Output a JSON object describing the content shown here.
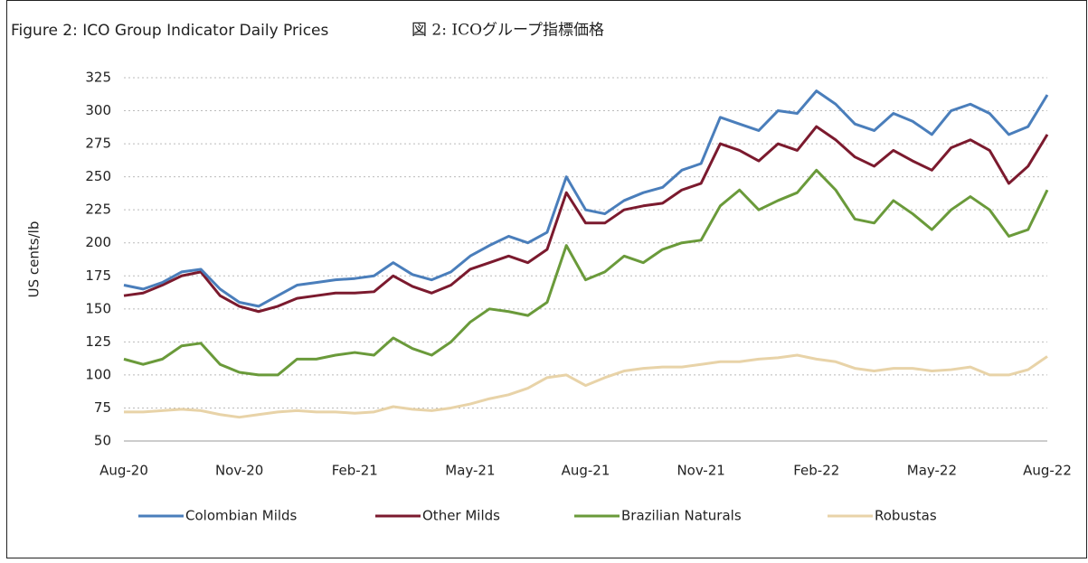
{
  "chart_data": {
    "type": "line",
    "title": "Figure 2: ICO Group Indicator Daily Prices",
    "subtitle": "図 2: ICOグループ指標価格",
    "y_label": "US cents/lb",
    "categories": [
      "Aug-20",
      null,
      null,
      null,
      null,
      null,
      "Nov-20",
      null,
      null,
      null,
      null,
      null,
      "Feb-21",
      null,
      null,
      null,
      null,
      null,
      "May-21",
      null,
      null,
      null,
      null,
      null,
      "Aug-21",
      null,
      null,
      null,
      null,
      null,
      "Nov-21",
      null,
      null,
      null,
      null,
      null,
      "Feb-22",
      null,
      null,
      null,
      null,
      null,
      "May-22",
      null,
      null,
      null,
      null,
      null,
      "Aug-22"
    ],
    "series": [
      {
        "name": "Colombian Milds",
        "color": "#4a7ebb",
        "values": [
          168,
          165,
          170,
          178,
          180,
          165,
          155,
          152,
          160,
          168,
          170,
          172,
          173,
          175,
          185,
          176,
          172,
          178,
          190,
          198,
          205,
          200,
          208,
          250,
          225,
          222,
          232,
          238,
          242,
          255,
          260,
          295,
          290,
          285,
          300,
          298,
          315,
          305,
          290,
          285,
          298,
          292,
          282,
          300,
          305,
          298,
          282,
          288,
          312
        ]
      },
      {
        "name": "Other Milds",
        "color": "#7b1a2e",
        "values": [
          160,
          162,
          168,
          175,
          178,
          160,
          152,
          148,
          152,
          158,
          160,
          162,
          162,
          163,
          175,
          167,
          162,
          168,
          180,
          185,
          190,
          185,
          195,
          238,
          215,
          215,
          225,
          228,
          230,
          240,
          245,
          275,
          270,
          262,
          275,
          270,
          288,
          278,
          265,
          258,
          270,
          262,
          255,
          272,
          278,
          270,
          245,
          258,
          282
        ]
      },
      {
        "name": "Brazilian Naturals",
        "color": "#6a9a3a",
        "values": [
          112,
          108,
          112,
          122,
          124,
          108,
          102,
          100,
          100,
          112,
          112,
          115,
          117,
          115,
          128,
          120,
          115,
          125,
          140,
          150,
          148,
          145,
          155,
          198,
          172,
          178,
          190,
          185,
          195,
          200,
          202,
          228,
          240,
          225,
          232,
          238,
          255,
          240,
          218,
          215,
          232,
          222,
          210,
          225,
          235,
          225,
          205,
          210,
          240
        ]
      },
      {
        "name": "Robustas",
        "color": "#e8d3a8",
        "values": [
          72,
          72,
          73,
          74,
          73,
          70,
          68,
          70,
          72,
          73,
          72,
          72,
          71,
          72,
          76,
          74,
          73,
          75,
          78,
          82,
          85,
          90,
          98,
          100,
          92,
          98,
          103,
          105,
          106,
          106,
          108,
          110,
          110,
          112,
          113,
          115,
          112,
          110,
          105,
          103,
          105,
          105,
          103,
          104,
          106,
          100,
          100,
          104,
          114
        ]
      }
    ],
    "ylim": [
      50,
      325
    ],
    "yticks": [
      50,
      75,
      100,
      125,
      150,
      175,
      200,
      225,
      250,
      275,
      300,
      325
    ],
    "grid": true,
    "legend": "bottom"
  }
}
